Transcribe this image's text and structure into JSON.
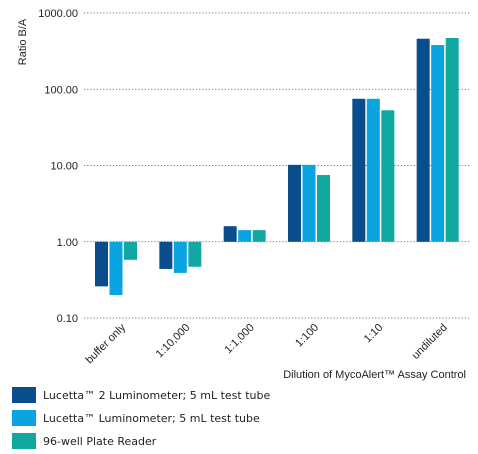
{
  "chart_data": {
    "type": "bar",
    "scale": "log",
    "ylabel": "Ratio B/A",
    "xlabel": "Dilution of MycoAlert™ Assay Control",
    "ylim": [
      0.1,
      1000
    ],
    "yticks": [
      "1000.00",
      "100.00",
      "10.00",
      "1.00",
      "0.10"
    ],
    "ytick_values": [
      1000,
      100,
      10,
      1,
      0.1
    ],
    "baseline": 1,
    "grid": "horizontal-dotted",
    "legend_position": "bottom-left",
    "categories": [
      "buffer only",
      "1:10,000",
      "1:1,000",
      "1:100",
      "1:10",
      "undiluted"
    ],
    "series": [
      {
        "name": "Lucetta™ 2 Luminometer; 5 mL test tube",
        "color": "#0a4d8c",
        "values": [
          0.26,
          0.44,
          1.6,
          10.2,
          75,
          460
        ]
      },
      {
        "name": "Lucetta™ Luminometer; 5 mL test tube",
        "color": "#0aa5e0",
        "values": [
          0.2,
          0.39,
          1.42,
          10.2,
          75,
          380
        ]
      },
      {
        "name": "96-well Plate Reader",
        "color": "#12a8a2",
        "values": [
          0.58,
          0.47,
          1.42,
          7.5,
          53,
          470
        ]
      }
    ]
  }
}
